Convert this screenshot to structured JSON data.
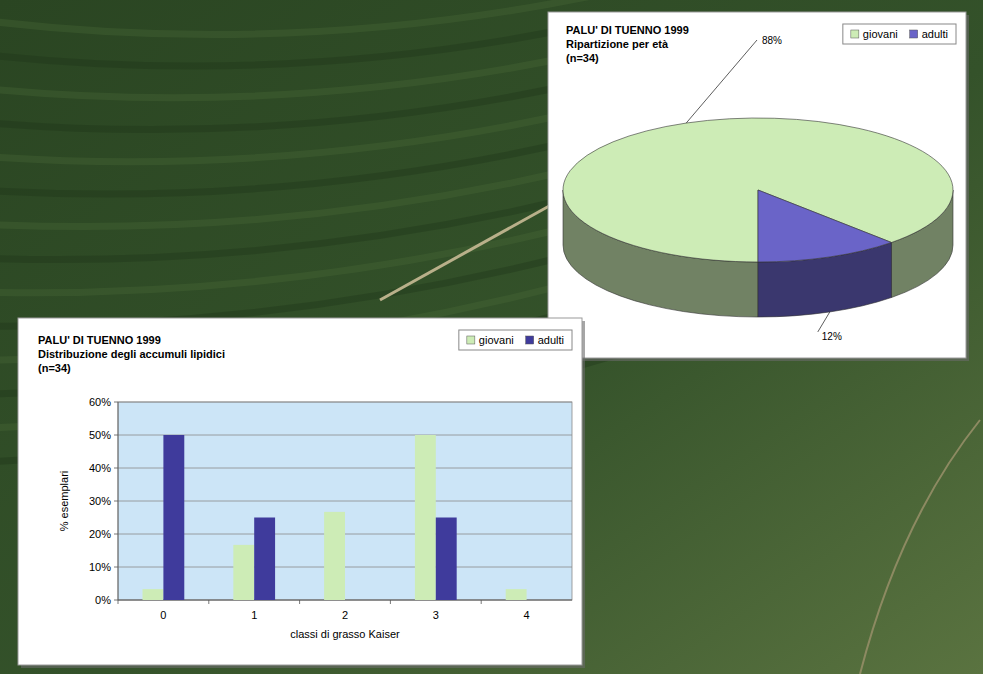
{
  "chart_data": [
    {
      "type": "pie",
      "title": "PALU' DI TUENNO 1999",
      "subtitle": "Ripartizione per età",
      "annotations": [
        "(n=34)"
      ],
      "categories": [
        "giovani",
        "adulti"
      ],
      "values": [
        88,
        12
      ],
      "value_labels": [
        "88%",
        "12%"
      ],
      "colors": [
        "#cdecb6",
        "#6a64c8"
      ],
      "legend": "top-right",
      "data_labels": true
    },
    {
      "type": "bar",
      "title": "PALU' DI TUENNO 1999",
      "subtitle": "Distribuzione degli accumuli lipidici",
      "annotations": [
        "(n=34)"
      ],
      "categories": [
        "0",
        "1",
        "2",
        "3",
        "4"
      ],
      "series": [
        {
          "name": "giovani",
          "color": "#cdecb6",
          "values": [
            3.3,
            16.7,
            26.7,
            50,
            3.3
          ]
        },
        {
          "name": "adulti",
          "color": "#3f3b9c",
          "values": [
            50,
            25,
            0,
            25,
            0
          ]
        }
      ],
      "xlabel": "classi di grasso Kaiser",
      "ylabel": "% esemplari",
      "ylim": [
        0,
        60
      ],
      "yticks": [
        {
          "value": 0,
          "label": "0%"
        },
        {
          "value": 10,
          "label": "10%"
        },
        {
          "value": 20,
          "label": "20%"
        },
        {
          "value": 30,
          "label": "30%"
        },
        {
          "value": 40,
          "label": "40%"
        },
        {
          "value": 50,
          "label": "50%"
        },
        {
          "value": 60,
          "label": "60%"
        }
      ],
      "grid": true,
      "legend": "top-right"
    }
  ]
}
